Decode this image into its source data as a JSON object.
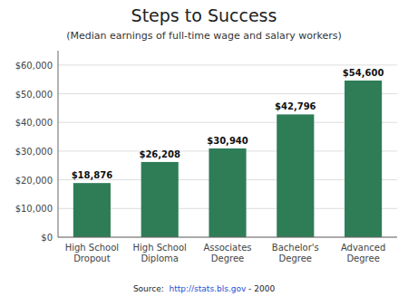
{
  "chart_data": {
    "type": "bar",
    "title": "Steps to Success",
    "subtitle": "(Median earnings of full-time wage and salary workers)",
    "categories": [
      "High School\nDropout",
      "High School\nDiploma",
      "Associates\nDegree",
      "Bachelor's\nDegree",
      "Advanced\nDegree"
    ],
    "values": [
      18876,
      26208,
      30940,
      42796,
      54600
    ],
    "value_labels": [
      "$18,876",
      "$26,208",
      "$30,940",
      "$42,796",
      "$54,600"
    ],
    "data_labels": true,
    "color": "#2E7D57",
    "ylim": [
      0,
      65000
    ],
    "yticks": [
      {
        "value": 0,
        "label": "$0"
      },
      {
        "value": 10000,
        "label": "$10,000"
      },
      {
        "value": 20000,
        "label": "$20,000"
      },
      {
        "value": 30000,
        "label": "$30,000"
      },
      {
        "value": 40000,
        "label": "$40,000"
      },
      {
        "value": 50000,
        "label": "$50,000"
      },
      {
        "value": 60000,
        "label": "$60,000"
      }
    ],
    "grid": true,
    "annotations": [
      "Source:  ",
      "http://stats.bls.gov",
      " - 2000"
    ]
  }
}
